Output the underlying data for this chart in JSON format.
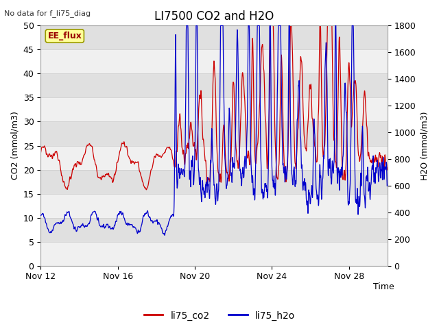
{
  "title": "LI7500 CO2 and H2O",
  "top_left_text": "No data for f_li75_diag",
  "box_label": "EE_flux",
  "xlabel": "Time",
  "ylabel_left": "CO2 (mmol/m3)",
  "ylabel_right": "H2O (mmol/m3)",
  "ylim_left": [
    0,
    50
  ],
  "ylim_right": [
    0,
    1800
  ],
  "xtick_labels": [
    "Nov 12",
    "Nov 16",
    "Nov 20",
    "Nov 24",
    "Nov 28"
  ],
  "xtick_positions": [
    0,
    4,
    8,
    12,
    16
  ],
  "yticks_left": [
    0,
    5,
    10,
    15,
    20,
    25,
    30,
    35,
    40,
    45,
    50
  ],
  "yticks_right": [
    0,
    200,
    400,
    600,
    800,
    1000,
    1200,
    1400,
    1600,
    1800
  ],
  "line1_color": "#cc0000",
  "line2_color": "#0000cc",
  "line1_label": "li75_co2",
  "line2_label": "li75_h2o",
  "fig_bg": "#ffffff",
  "plot_bg": "#ffffff",
  "band_light": "#f0f0f0",
  "band_dark": "#e0e0e0",
  "figsize": [
    6.4,
    4.8
  ],
  "dpi": 100
}
